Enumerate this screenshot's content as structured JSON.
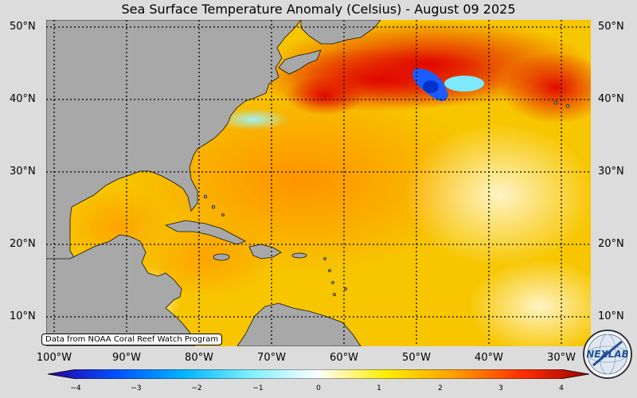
{
  "title": "Sea Surface Temperature Anomaly (Celsius) - August 09 2025",
  "map": {
    "latitude_labels": [
      "50°N",
      "40°N",
      "30°N",
      "20°N",
      "10°N"
    ],
    "longitude_labels": [
      "100°W",
      "90°W",
      "80°W",
      "70°W",
      "60°W",
      "50°W",
      "40°W",
      "30°W"
    ]
  },
  "colorbar": {
    "ticks": [
      "−4",
      "−3",
      "−2",
      "−1",
      "0",
      "1",
      "2",
      "3",
      "4"
    ],
    "range": [
      -4,
      4
    ],
    "colors": [
      "#2b00a0",
      "#0050ff",
      "#00b4ff",
      "#7ff0ff",
      "#ffffff",
      "#ffee00",
      "#ffa000",
      "#ff3000",
      "#a00000"
    ]
  },
  "credit": "Data from NOAA Coral Reef Watch Program",
  "logo": {
    "text": "NEXLAB",
    "icon": "nexlab-globe-logo"
  },
  "colors": {
    "land": "#a8a8a8",
    "background": "#dcdcdc"
  }
}
